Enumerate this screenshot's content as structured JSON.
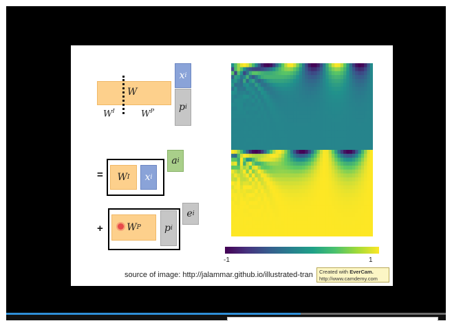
{
  "slide": {
    "top": {
      "w_label": "W",
      "w_left_base": "W",
      "w_left_sup": "I",
      "w_right_base": "W",
      "w_right_sup": "P",
      "x_base": "x",
      "x_sup": "i",
      "p_base": "p",
      "p_sup": "i"
    },
    "middle": {
      "equals": "=",
      "w_base": "W",
      "w_sup": "I",
      "x_base": "x",
      "x_sup": "i",
      "a_base": "a",
      "a_sup": "i"
    },
    "bottom": {
      "plus": "+",
      "w_base": "W",
      "w_sup": "P",
      "p_base": "p",
      "p_sup": "i",
      "e_base": "e",
      "e_sup": "i"
    },
    "colorbar": {
      "min_label": "-1",
      "max_label": "1"
    },
    "source_text": "source of image: http://jalammar.github.io/illustrated-tran"
  },
  "watermark": {
    "line1_prefix": "Created with ",
    "line1_brand": "EverCam.",
    "line2": "http://www.camdemy.com"
  },
  "player": {
    "progress_fraction": 0.67
  },
  "colors": {
    "orange": "#fdd08c",
    "blue": "#8aa3d8",
    "gray": "#c6c6c6",
    "green": "#a9cf8a",
    "heat_teal": "#218e8d",
    "heat_yellow": "#fde725",
    "progress": "#2f8fd8"
  }
}
